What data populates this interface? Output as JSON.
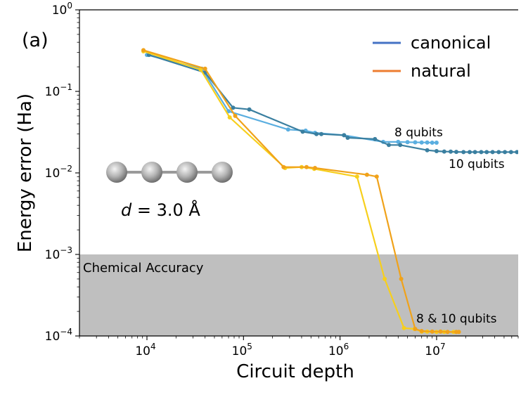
{
  "chart_data": {
    "type": "line",
    "panel_label": "(a)",
    "xlabel": "Circuit depth",
    "ylabel": "Energy error (Ha)",
    "xscale": "log",
    "yscale": "log",
    "xlim": [
      2000,
      70000000
    ],
    "ylim": [
      0.0001,
      1
    ],
    "x_ticks": [
      {
        "value": 10000,
        "base": "10",
        "exp": "4"
      },
      {
        "value": 100000,
        "base": "10",
        "exp": "5"
      },
      {
        "value": 1000000,
        "base": "10",
        "exp": "6"
      },
      {
        "value": 10000000,
        "base": "10",
        "exp": "7"
      }
    ],
    "y_ticks": [
      {
        "value": 0.0001,
        "base": "10",
        "exp": "−4"
      },
      {
        "value": 0.001,
        "base": "10",
        "exp": "−3"
      },
      {
        "value": 0.01,
        "base": "10",
        "exp": "−2"
      },
      {
        "value": 0.1,
        "base": "10",
        "exp": "−1"
      },
      {
        "value": 1,
        "base": "10",
        "exp": "0"
      }
    ],
    "shaded_region": {
      "label": "Chemical Accuracy",
      "y_from": 0.0001,
      "y_to": 0.001,
      "color": "#bfbfbf"
    },
    "legend": {
      "position": "top-right",
      "entries": [
        {
          "label": "canonical",
          "color": "#4472c4"
        },
        {
          "label": "natural",
          "color": "#ed7d31"
        }
      ]
    },
    "annotations": {
      "qubits_8": "8 qubits",
      "qubits_10": "10 qubits",
      "qubits_8_10": "8 & 10 qubits",
      "distance_italic": "d",
      "distance_value": " = 3.0 Å"
    },
    "series": [
      {
        "name": "canonical 8 qubits",
        "color": "#5aaee0",
        "x": [
          10000,
          37000,
          70000,
          290000,
          440000,
          550000,
          1100000,
          2800000,
          4000000,
          5000000,
          6000000,
          7000000,
          8000000,
          9000000,
          10000000
        ],
        "y": [
          0.28,
          0.19,
          0.057,
          0.034,
          0.033,
          0.031,
          0.029,
          0.024,
          0.024,
          0.0238,
          0.0237,
          0.0236,
          0.0236,
          0.0235,
          0.0235
        ]
      },
      {
        "name": "canonical 10 qubits",
        "color": "#3a7fa0",
        "x": [
          10500,
          40000,
          78000,
          115000,
          410000,
          570000,
          640000,
          1100000,
          1200000,
          2300000,
          3200000,
          4200000,
          8000000,
          10000000,
          12000000,
          14000000,
          16000000,
          19000000,
          22000000,
          25000000,
          29000000,
          33000000,
          38000000,
          44000000,
          51000000,
          59000000,
          68000000
        ],
        "y": [
          0.28,
          0.17,
          0.063,
          0.06,
          0.032,
          0.03,
          0.03,
          0.029,
          0.027,
          0.026,
          0.022,
          0.022,
          0.019,
          0.0185,
          0.0183,
          0.0182,
          0.0181,
          0.018,
          0.018,
          0.018,
          0.018,
          0.018,
          0.018,
          0.018,
          0.018,
          0.018,
          0.018
        ]
      },
      {
        "name": "natural 8 qubits",
        "color": "#f7cf1c",
        "x": [
          9200,
          36000,
          72000,
          270000,
          400000,
          540000,
          1500000,
          2900000,
          4600000,
          5900000,
          7000000,
          8000000,
          10000000,
          12000000,
          15000000,
          16000000
        ],
        "y": [
          0.31,
          0.185,
          0.048,
          0.0115,
          0.0118,
          0.0112,
          0.009,
          0.0005,
          0.000125,
          0.000122,
          0.000113,
          0.000113,
          0.000112,
          0.000112,
          0.000112,
          0.000112
        ]
      },
      {
        "name": "natural 10 qubits",
        "color": "#f0a21a",
        "x": [
          9200,
          40000,
          82000,
          260000,
          450000,
          550000,
          1900000,
          2400000,
          4300000,
          6000000,
          7000000,
          9000000,
          11000000,
          13000000,
          16000000,
          17000000
        ],
        "y": [
          0.32,
          0.19,
          0.05,
          0.0118,
          0.0118,
          0.0115,
          0.0095,
          0.009,
          0.0005,
          0.000122,
          0.000115,
          0.000113,
          0.000113,
          0.000112,
          0.000112,
          0.000112
        ]
      }
    ]
  }
}
